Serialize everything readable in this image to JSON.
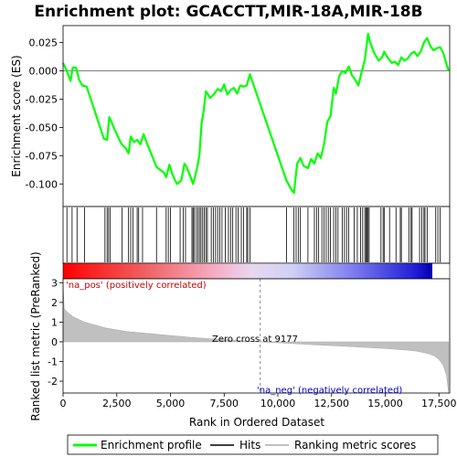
{
  "chart_data": {
    "type": "line",
    "title": "Enrichment plot: GCACCTT,MIR-18A,MIR-18B",
    "x_axis": {
      "label": "Rank in Ordered Dataset",
      "range": [
        0,
        18000
      ],
      "ticks": [
        0,
        2500,
        5000,
        7500,
        10000,
        12500,
        15000,
        17500
      ],
      "tick_labels": [
        "0",
        "2,500",
        "5,000",
        "7,500",
        "10,000",
        "12,500",
        "15,000",
        "17,500"
      ]
    },
    "enrichment_panel": {
      "ylabel": "Enrichment score (ES)",
      "ylim": [
        -0.12,
        0.04
      ],
      "ticks": [
        -0.1,
        -0.075,
        -0.05,
        -0.025,
        0.0,
        0.025
      ],
      "tick_labels": [
        "-0.100",
        "-0.075",
        "-0.050",
        "-0.025",
        "0.000",
        "0.025"
      ],
      "grid": false,
      "series": [
        {
          "name": "Enrichment profile",
          "color": "#00ff00",
          "x": [
            0,
            150,
            350,
            450,
            600,
            750,
            900,
            1100,
            1900,
            2050,
            2150,
            2250,
            2400,
            2700,
            2900,
            3050,
            3150,
            3300,
            3450,
            3600,
            3750,
            3900,
            4100,
            4350,
            4700,
            4800,
            4950,
            5100,
            5300,
            5500,
            5650,
            5750,
            5900,
            6050,
            6150,
            6250,
            6350,
            6450,
            6550,
            6650,
            6750,
            6850,
            6950,
            7050,
            7200,
            7350,
            7500,
            7650,
            7800,
            7950,
            8100,
            8250,
            8400,
            8550,
            8700,
            10400,
            10600,
            10750,
            10900,
            11050,
            11200,
            11400,
            11550,
            11700,
            11850,
            12000,
            12150,
            12300,
            12450,
            12600,
            12700,
            12850,
            13000,
            13150,
            13300,
            13450,
            13600,
            13750,
            13900,
            14050,
            14200,
            14300,
            14500,
            14700,
            14850,
            14950,
            15100,
            15300,
            15450,
            15600,
            15750,
            15900,
            16050,
            16200,
            16350,
            16500,
            16650,
            16800,
            16950,
            17100,
            17250,
            17400,
            17550,
            17700,
            17850,
            17950
          ],
          "y": [
            0.007,
            0.001,
            -0.009,
            0.003,
            0.003,
            -0.008,
            -0.013,
            -0.014,
            -0.06,
            -0.061,
            -0.041,
            -0.045,
            -0.052,
            -0.064,
            -0.068,
            -0.073,
            -0.058,
            -0.063,
            -0.061,
            -0.065,
            -0.056,
            -0.064,
            -0.073,
            -0.085,
            -0.09,
            -0.094,
            -0.083,
            -0.092,
            -0.1,
            -0.097,
            -0.082,
            -0.085,
            -0.092,
            -0.1,
            -0.093,
            -0.085,
            -0.074,
            -0.046,
            -0.035,
            -0.018,
            -0.021,
            -0.024,
            -0.022,
            -0.02,
            -0.016,
            -0.018,
            -0.012,
            -0.021,
            -0.017,
            -0.015,
            -0.02,
            -0.013,
            -0.014,
            -0.013,
            -0.003,
            -0.097,
            -0.104,
            -0.108,
            -0.082,
            -0.077,
            -0.084,
            -0.086,
            -0.078,
            -0.082,
            -0.073,
            -0.077,
            -0.065,
            -0.045,
            -0.04,
            -0.015,
            -0.02,
            -0.005,
            0.0,
            -0.002,
            0.004,
            -0.004,
            -0.008,
            -0.013,
            -0.001,
            0.01,
            0.033,
            0.025,
            0.015,
            0.009,
            0.012,
            0.017,
            0.012,
            0.007,
            0.008,
            0.005,
            0.012,
            0.009,
            0.011,
            0.015,
            0.017,
            0.013,
            0.017,
            0.025,
            0.029,
            0.022,
            0.018,
            0.02,
            0.021,
            0.016,
            0.006,
            0.0
          ]
        }
      ]
    },
    "hits_panel": {
      "legend_label": "Hits",
      "color": "#000000",
      "hit_ranks": [
        180,
        420,
        650,
        1000,
        1950,
        2050,
        2120,
        2200,
        2750,
        3050,
        3150,
        3250,
        3450,
        3520,
        3700,
        4350,
        4800,
        4900,
        5000,
        5450,
        5600,
        5700,
        6000,
        6050,
        6100,
        6200,
        6280,
        6350,
        6420,
        6500,
        6570,
        6650,
        6720,
        6900,
        7000,
        7100,
        7200,
        7300,
        7400,
        7550,
        7700,
        7800,
        7900,
        8050,
        8150,
        8300,
        8400,
        8550,
        8600,
        8700,
        10400,
        10750,
        10850,
        10950,
        11050,
        11400,
        11700,
        11800,
        11900,
        12050,
        12150,
        12250,
        12350,
        12450,
        12600,
        12700,
        12800,
        13000,
        13100,
        13200,
        13300,
        13550,
        13700,
        13850,
        13950,
        14050,
        14100,
        14150,
        14200,
        14250,
        14800,
        14900,
        14950,
        15200,
        15500,
        15700,
        15750,
        16100,
        16200,
        16250,
        16600,
        16700,
        16800,
        16850,
        16950,
        17350,
        17450,
        17550
      ]
    },
    "ranked_panel": {
      "ylabel": "Ranked list metric (PreRanked)",
      "ylim": [
        -2.6,
        3.2
      ],
      "ticks": [
        -2,
        -1,
        0,
        1,
        2,
        3
      ],
      "tick_labels": [
        "-2",
        "-1",
        "0",
        "1",
        "2",
        "3"
      ],
      "color": "#c0c0c0",
      "x": [
        0,
        50,
        200,
        500,
        1000,
        2000,
        3000,
        4000,
        5000,
        6000,
        7000,
        8000,
        9177,
        10000,
        11000,
        12000,
        13000,
        14000,
        15000,
        16000,
        16500,
        17000,
        17300,
        17500,
        17700,
        17850,
        17950
      ],
      "y": [
        3.0,
        1.7,
        1.5,
        1.25,
        1.0,
        0.7,
        0.52,
        0.42,
        0.32,
        0.22,
        0.14,
        0.08,
        0.0,
        -0.05,
        -0.11,
        -0.17,
        -0.22,
        -0.28,
        -0.34,
        -0.42,
        -0.48,
        -0.6,
        -0.72,
        -0.9,
        -1.2,
        -1.7,
        -2.6
      ]
    },
    "annotations": {
      "zero_cross": "Zero cross at 9177",
      "zero_cross_rank": 9177,
      "na_pos": "'na_pos' (positively correlated)",
      "na_neg": "'na_neg' (negatively correlated)",
      "na_pos_color": "#cc0000",
      "na_neg_color": "#0000cc"
    },
    "legend": {
      "placement": "bottom",
      "entries": [
        {
          "label": "Enrichment profile",
          "color": "#00ff00"
        },
        {
          "label": "Hits",
          "color": "#000000"
        },
        {
          "label": "Ranking metric scores",
          "color": "#c0c0c0"
        }
      ]
    }
  }
}
